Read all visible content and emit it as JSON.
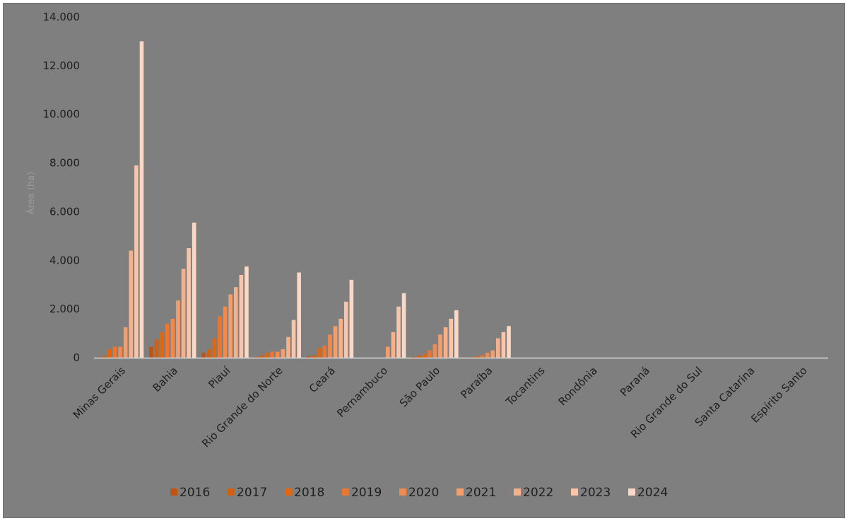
{
  "chart_data": {
    "type": "bar",
    "title": "",
    "xlabel": "",
    "ylabel": "Área (ha)",
    "ylim": [
      0,
      14000
    ],
    "yticks": [
      0,
      2000,
      4000,
      6000,
      8000,
      10000,
      12000,
      14000
    ],
    "ytick_labels": [
      "0",
      "2.000",
      "4.000",
      "6.000",
      "8.000",
      "10.000",
      "12.000",
      "14.000"
    ],
    "grid": false,
    "legend_position": "bottom",
    "categories": [
      "Minas Gerais",
      "Bahia",
      "Piauí",
      "Rio Grande do Norte",
      "Ceará",
      "Pernambuco",
      "São Paulo",
      "Paraíba",
      "Tocantins",
      "Rondônia",
      "Paraná",
      "Rio Grande do Sul",
      "Santa Catarina",
      "Espírito Santo"
    ],
    "series": [
      {
        "name": "2016",
        "color": "#c2520f",
        "values": [
          20,
          450,
          200,
          30,
          50,
          0,
          30,
          10,
          0,
          0,
          0,
          0,
          0,
          0
        ]
      },
      {
        "name": "2017",
        "color": "#d2600f",
        "values": [
          80,
          750,
          350,
          100,
          100,
          0,
          80,
          20,
          0,
          0,
          0,
          0,
          0,
          0
        ]
      },
      {
        "name": "2018",
        "color": "#e2660c",
        "values": [
          350,
          1050,
          800,
          200,
          400,
          0,
          150,
          50,
          0,
          0,
          0,
          0,
          0,
          0
        ]
      },
      {
        "name": "2019",
        "color": "#ec7530",
        "values": [
          450,
          1400,
          1700,
          250,
          500,
          0,
          300,
          100,
          0,
          0,
          0,
          0,
          0,
          0
        ]
      },
      {
        "name": "2020",
        "color": "#f08a4e",
        "values": [
          450,
          1600,
          2100,
          250,
          950,
          0,
          550,
          200,
          0,
          0,
          0,
          0,
          0,
          0
        ]
      },
      {
        "name": "2021",
        "color": "#f39e6c",
        "values": [
          1250,
          2350,
          2600,
          350,
          1300,
          450,
          950,
          300,
          0,
          0,
          0,
          0,
          0,
          0
        ]
      },
      {
        "name": "2022",
        "color": "#f6b18a",
        "values": [
          4400,
          3650,
          2900,
          850,
          1600,
          1050,
          1250,
          800,
          0,
          0,
          0,
          0,
          0,
          0
        ]
      },
      {
        "name": "2023",
        "color": "#f8c5a8",
        "values": [
          7900,
          4500,
          3400,
          1550,
          2300,
          2100,
          1600,
          1050,
          0,
          0,
          0,
          0,
          0,
          0
        ]
      },
      {
        "name": "2024",
        "color": "#fbd8c5",
        "values": [
          13000,
          5550,
          3750,
          3500,
          3200,
          2650,
          1950,
          1300,
          0,
          0,
          0,
          0,
          0,
          0
        ]
      }
    ]
  }
}
